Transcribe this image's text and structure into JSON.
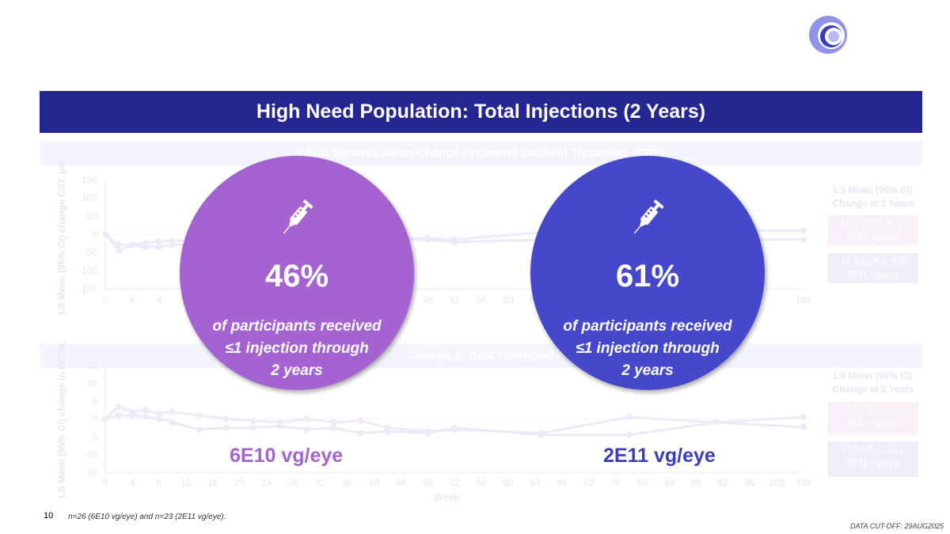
{
  "title": "High Need Population: Total Injections (2 Years)",
  "colors": {
    "title_bar": "#25268f",
    "low_dose": "#a463d0",
    "high_dose": "#4648cc"
  },
  "logo": {
    "icon": "concentric-arc-logo"
  },
  "footer": {
    "page_number": "10",
    "footnote": "n=26 (6E10 vg/eye) and n=23 (2E11 vg/eye).",
    "cutoff": "DATA CUT-OFF: 29AUG2025"
  },
  "highlights": [
    {
      "icon": "syringe-icon",
      "percent": "46%",
      "line1": "of participants received",
      "line2": "≤1 injection through",
      "line3": "2 years",
      "dose_label": "6E10 vg/eye"
    },
    {
      "icon": "syringe-icon",
      "percent": "61%",
      "line1": "of participants received",
      "line2": "≤1 injection through",
      "line3": "2 years",
      "dose_label": "2E11 vg/eye"
    }
  ],
  "chart_data": [
    {
      "type": "line",
      "title": "Least Squares Mean Change in Central Subfield Thickness (CST)",
      "ylabel": "LS Mean (95% CI) change CST, µm",
      "xlabel": "",
      "ylim": [
        -150,
        150
      ],
      "yticks": [
        "150",
        "100",
        "50",
        "0",
        "-50",
        "-100",
        "-150"
      ],
      "xlim": [
        0,
        104
      ],
      "xticks": [
        "0",
        "4",
        "8",
        "48",
        "52",
        "56",
        "60",
        "64",
        "104"
      ],
      "legend_title": "LS Mean (95% CI) Change at 2 Years",
      "legend": [
        {
          "value": "9.8 (-10.7, 30.2)",
          "name": "6E10 vg/eye",
          "color": "#f8eef8"
        },
        {
          "value": "-14.8 (-36.2, 6.6)",
          "name": "2E11 vg/eye",
          "color": "#efeffa"
        }
      ],
      "x": [
        0,
        2,
        4,
        6,
        8,
        10,
        48,
        52,
        65,
        78,
        91,
        104
      ],
      "series": [
        {
          "name": "6E10 vg/eye",
          "values": [
            0,
            -45,
            -30,
            -35,
            -35,
            -30,
            -10,
            -15,
            5,
            5,
            10,
            9.8
          ]
        },
        {
          "name": "2E11 vg/eye",
          "values": [
            0,
            -30,
            -28,
            -25,
            -20,
            -18,
            -15,
            -22,
            -15,
            -15,
            -15,
            -14.8
          ]
        }
      ]
    },
    {
      "type": "line",
      "title": "Change in Best Corrected",
      "ylabel": "LS Mean (95% CI) change in BCVA,",
      "xlabel": "Week",
      "ylim": [
        -15,
        15
      ],
      "yticks": [
        "15",
        "10",
        "5",
        "0",
        "-5",
        "-10",
        "-15"
      ],
      "xlim": [
        0,
        104
      ],
      "xticks": [
        "0",
        "4",
        "8",
        "12",
        "16",
        "20",
        "24",
        "28",
        "32",
        "36",
        "40",
        "44",
        "48",
        "52",
        "56",
        "60",
        "64",
        "68",
        "72",
        "76",
        "80",
        "84",
        "88",
        "92",
        "96",
        "100",
        "104"
      ],
      "legend_title": "LS Mean (95% CI) Change at 2 Years",
      "legend": [
        {
          "value": "0.5 (-2.7, 3.7)",
          "name": "6E10 vg/eye",
          "color": "#f8eef8"
        },
        {
          "value": "-2.3 (-5.7, 1.1)",
          "name": "2E11 vg/eye",
          "color": "#efeffa"
        }
      ],
      "x": [
        0,
        2,
        4,
        6,
        8,
        10,
        14,
        18,
        22,
        26,
        30,
        34,
        38,
        42,
        48,
        52,
        65,
        78,
        91,
        104
      ],
      "series": [
        {
          "name": "6E10 vg/eye",
          "values": [
            0,
            3.5,
            2,
            2.5,
            1.5,
            2,
            1,
            0,
            -0.5,
            -1,
            0,
            -1,
            -0.5,
            -2.5,
            -3.5,
            -3,
            -4,
            0.5,
            -1,
            0.5
          ]
        },
        {
          "name": "2E11 vg/eye",
          "values": [
            0,
            1,
            1,
            0.5,
            0,
            -1,
            -3,
            -2.5,
            -2.5,
            -2,
            -3,
            -2.5,
            -4,
            -3.5,
            -4,
            -2.5,
            -4.5,
            -4.5,
            -1,
            -2.3
          ]
        }
      ]
    }
  ]
}
